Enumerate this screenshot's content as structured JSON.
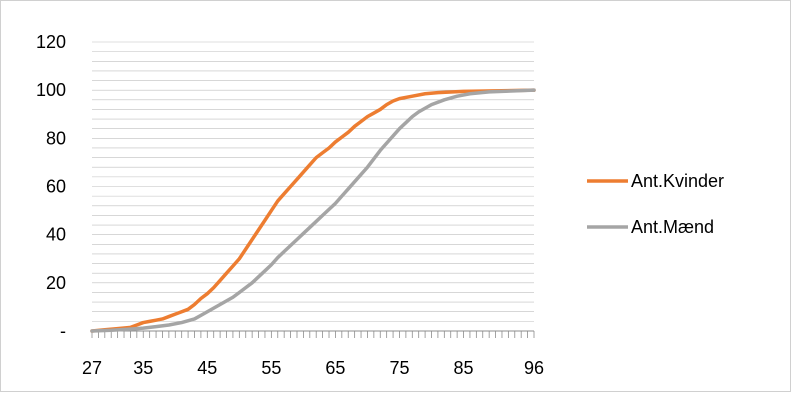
{
  "chart_data": {
    "type": "line",
    "title": "",
    "xlabel": "",
    "ylabel": "",
    "ylim": [
      0,
      120
    ],
    "y_ticks": [
      0,
      20,
      40,
      60,
      80,
      100,
      120
    ],
    "y_tick_labels": [
      "-",
      "20",
      "40",
      "60",
      "80",
      "100",
      "120"
    ],
    "y_minor_step": 4,
    "x_range": [
      27,
      96
    ],
    "x_tick_labels": [
      "27",
      "35",
      "45",
      "55",
      "65",
      "75",
      "85",
      "96"
    ],
    "x_tick_values": [
      27,
      35,
      45,
      55,
      65,
      75,
      85,
      96
    ],
    "x_minor_step": 1,
    "grid": true,
    "legend_position": "right",
    "series": [
      {
        "name": "Ant.Kvinder",
        "color": "#ed7d31",
        "points": [
          [
            27,
            0
          ],
          [
            29,
            0.5
          ],
          [
            31,
            1
          ],
          [
            33,
            1.5
          ],
          [
            34,
            2.5
          ],
          [
            35,
            3.5
          ],
          [
            36,
            4
          ],
          [
            37,
            4.5
          ],
          [
            38,
            5
          ],
          [
            39,
            6
          ],
          [
            40,
            7
          ],
          [
            41,
            8
          ],
          [
            42,
            9
          ],
          [
            43,
            11
          ],
          [
            44,
            13.5
          ],
          [
            45,
            15.5
          ],
          [
            46,
            18
          ],
          [
            47,
            21
          ],
          [
            48,
            24
          ],
          [
            49,
            27
          ],
          [
            50,
            30
          ],
          [
            51,
            34
          ],
          [
            52,
            38
          ],
          [
            53,
            42
          ],
          [
            54,
            46
          ],
          [
            55,
            50
          ],
          [
            56,
            54
          ],
          [
            57,
            57
          ],
          [
            58,
            60
          ],
          [
            59,
            63
          ],
          [
            60,
            66
          ],
          [
            61,
            69
          ],
          [
            62,
            72
          ],
          [
            63,
            74
          ],
          [
            64,
            76
          ],
          [
            65,
            78.5
          ],
          [
            66,
            80.5
          ],
          [
            67,
            82.5
          ],
          [
            68,
            85
          ],
          [
            69,
            87
          ],
          [
            70,
            89
          ],
          [
            71,
            90.5
          ],
          [
            72,
            92
          ],
          [
            73,
            94
          ],
          [
            74,
            95.5
          ],
          [
            75,
            96.5
          ],
          [
            77,
            97.5
          ],
          [
            79,
            98.5
          ],
          [
            81,
            99
          ],
          [
            85,
            99.5
          ],
          [
            96,
            100
          ]
        ]
      },
      {
        "name": "Ant.Mænd",
        "color": "#a5a5a5",
        "points": [
          [
            27,
            0
          ],
          [
            30,
            0.3
          ],
          [
            33,
            0.8
          ],
          [
            35,
            1.2
          ],
          [
            37,
            1.8
          ],
          [
            39,
            2.5
          ],
          [
            41,
            3.5
          ],
          [
            43,
            5
          ],
          [
            44,
            6.5
          ],
          [
            45,
            8
          ],
          [
            46,
            9.5
          ],
          [
            47,
            11
          ],
          [
            48,
            12.5
          ],
          [
            49,
            14
          ],
          [
            50,
            16
          ],
          [
            51,
            18
          ],
          [
            52,
            20
          ],
          [
            53,
            22.5
          ],
          [
            54,
            25
          ],
          [
            55,
            27.5
          ],
          [
            56,
            30.5
          ],
          [
            57,
            33
          ],
          [
            58,
            35.5
          ],
          [
            59,
            38
          ],
          [
            60,
            40.5
          ],
          [
            61,
            43
          ],
          [
            62,
            45.5
          ],
          [
            63,
            48
          ],
          [
            64,
            50.5
          ],
          [
            65,
            53
          ],
          [
            66,
            56
          ],
          [
            67,
            59
          ],
          [
            68,
            62
          ],
          [
            69,
            65
          ],
          [
            70,
            68
          ],
          [
            71,
            71.5
          ],
          [
            72,
            75
          ],
          [
            73,
            78
          ],
          [
            74,
            81
          ],
          [
            75,
            84
          ],
          [
            76,
            86.5
          ],
          [
            77,
            89
          ],
          [
            78,
            91
          ],
          [
            79,
            92.5
          ],
          [
            80,
            94
          ],
          [
            82,
            96
          ],
          [
            84,
            97.5
          ],
          [
            86,
            98.5
          ],
          [
            89,
            99.3
          ],
          [
            96,
            100
          ]
        ]
      }
    ]
  }
}
